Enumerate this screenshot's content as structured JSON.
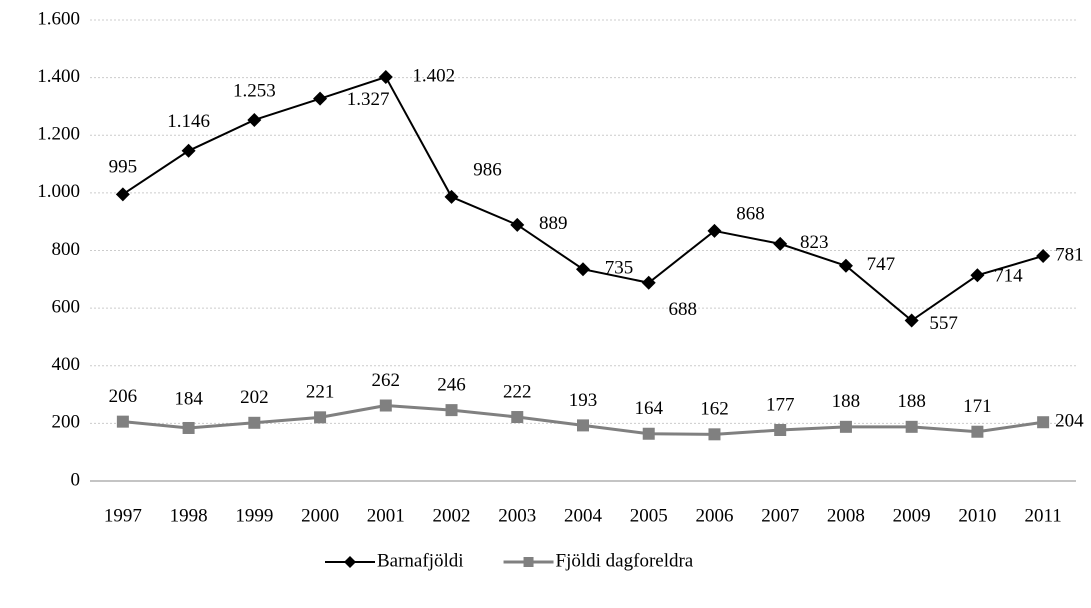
{
  "chart_data": {
    "type": "line",
    "categories": [
      "1997",
      "1998",
      "1999",
      "2000",
      "2001",
      "2002",
      "2003",
      "2004",
      "2005",
      "2006",
      "2007",
      "2008",
      "2009",
      "2010",
      "2011"
    ],
    "series": [
      {
        "name": "Barnafjöldi",
        "color": "#000000",
        "marker": "diamond",
        "values": [
          995,
          1146,
          1253,
          1327,
          1402,
          986,
          889,
          735,
          688,
          868,
          823,
          747,
          557,
          714,
          781
        ],
        "value_labels": [
          "995",
          "1.146",
          "1.253",
          "1.327",
          "1.402",
          "986",
          "889",
          "735",
          "688",
          "868",
          "823",
          "747",
          "557",
          "714",
          "781"
        ]
      },
      {
        "name": "Fjöldi dagforeldra",
        "color": "#808080",
        "marker": "square",
        "values": [
          206,
          184,
          202,
          221,
          262,
          246,
          222,
          193,
          164,
          162,
          177,
          188,
          188,
          171,
          204
        ]
      }
    ],
    "ylim": [
      0,
      1600
    ],
    "yticks": [
      0,
      200,
      400,
      600,
      800,
      {
        "value": 1000,
        "label": "1.000"
      },
      {
        "value": 1200,
        "label": "1.200"
      },
      {
        "value": 1400,
        "label": "1.400"
      },
      {
        "value": 1600,
        "label": "1.600"
      }
    ],
    "grid": true,
    "legend": "bottom"
  }
}
